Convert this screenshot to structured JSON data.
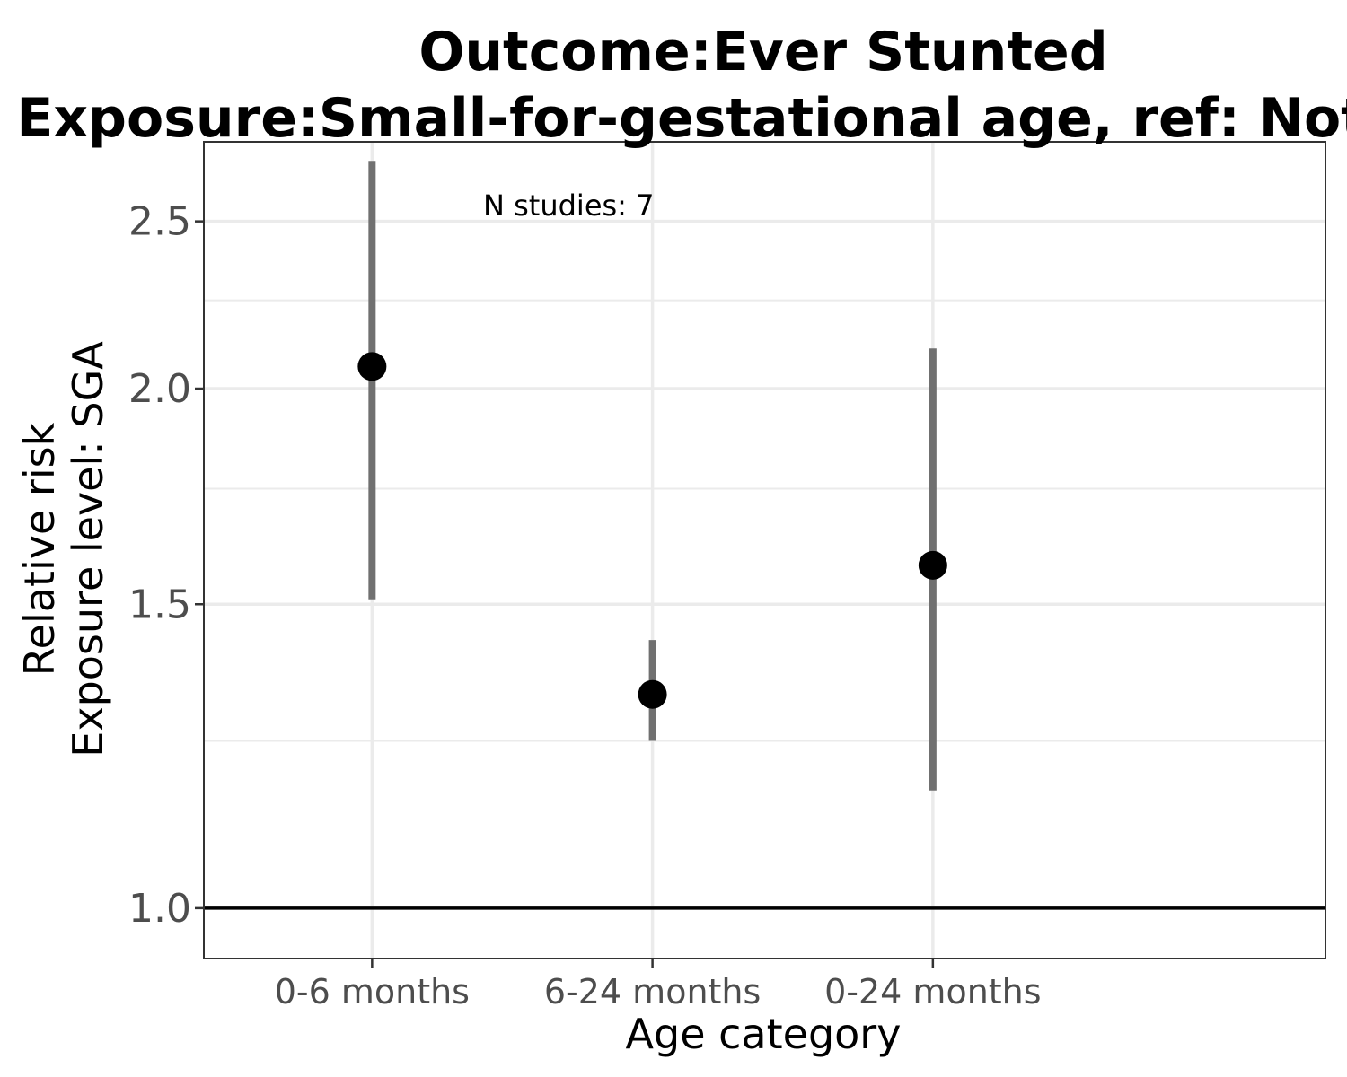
{
  "chart_data": {
    "type": "scatter",
    "title_lines": [
      "Outcome:Ever Stunted",
      "Exposure:Small-for-gestational age, ref: Not SGA"
    ],
    "xlabel": "Age category",
    "ylabel_lines": [
      "Relative risk",
      "Exposure level: SGA"
    ],
    "annotation": "N studies: 7",
    "y_scale": "log",
    "ylim": [
      0.935,
      2.78
    ],
    "y_ticks": [
      1.0,
      1.5,
      2.0,
      2.5
    ],
    "y_tick_labels": [
      "1.0",
      "1.5",
      "2.0",
      "2.5"
    ],
    "y_minor_ticks": [
      1.25,
      1.75,
      2.25
    ],
    "reference_line": 1.0,
    "categories": [
      "0-6 months",
      "6-24 months",
      "0-24 months"
    ],
    "series": [
      {
        "estimate": [
          2.06,
          1.33,
          1.58
        ],
        "ci_lower": [
          1.51,
          1.25,
          1.17
        ],
        "ci_upper": [
          2.71,
          1.43,
          2.11
        ]
      }
    ],
    "grid": true,
    "colors": {
      "point": "#000000",
      "ci": "#707070",
      "grid": "#ebebeb",
      "reference": "#000000"
    }
  }
}
